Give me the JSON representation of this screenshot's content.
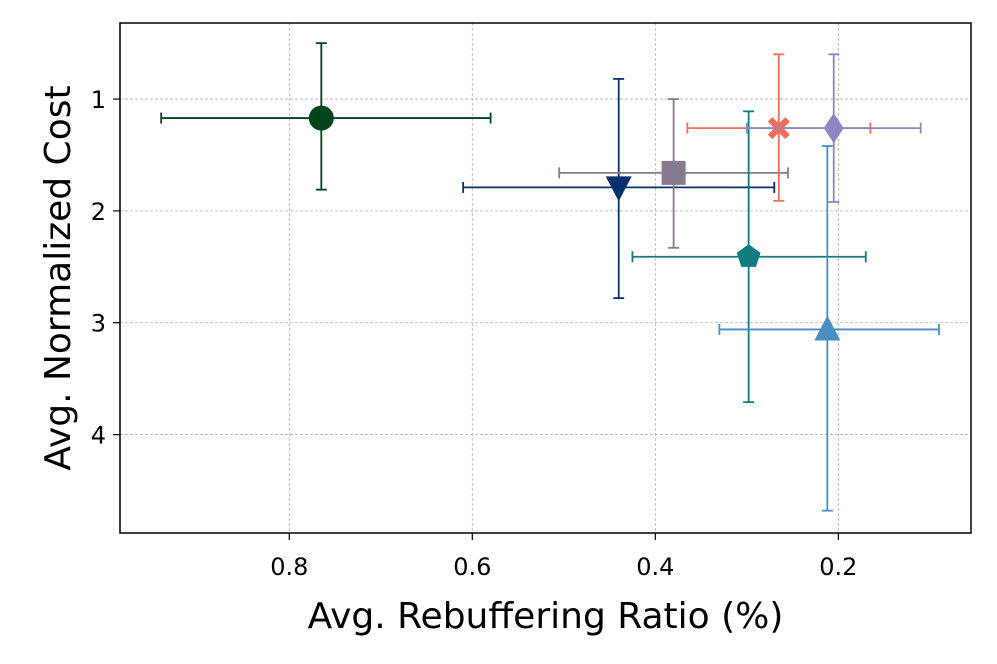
{
  "chart_data": {
    "type": "scatter",
    "title": "",
    "xlabel": "Avg. Rebuffering Ratio (%)",
    "ylabel": "Avg. Normalized Cost",
    "xlim": [
      0.985,
      0.055
    ],
    "ylim": [
      4.88,
      0.32
    ],
    "x_ticks": [
      0.8,
      0.6,
      0.4,
      0.2
    ],
    "x_tick_labels": [
      "0.8",
      "0.6",
      "0.4",
      "0.2"
    ],
    "y_ticks": [
      1,
      2,
      3,
      4
    ],
    "y_tick_labels": [
      "1",
      "2",
      "3",
      "4"
    ],
    "grid": true,
    "series": [
      {
        "name": "dark-green",
        "marker": "circle",
        "color": "#00441b",
        "x": 0.765,
        "y": 1.17,
        "x_err": [
          0.94,
          0.58
        ],
        "y_err": [
          0.5,
          1.81
        ]
      },
      {
        "name": "navy",
        "marker": "triangle-down",
        "color": "#08306b",
        "x": 0.44,
        "y": 1.79,
        "x_err": [
          0.61,
          0.27
        ],
        "y_err": [
          0.82,
          2.78
        ]
      },
      {
        "name": "gray",
        "marker": "square",
        "color": "#857b8c",
        "x": 0.38,
        "y": 1.66,
        "x_err": [
          0.505,
          0.255
        ],
        "y_err": [
          1.0,
          2.33
        ]
      },
      {
        "name": "teal",
        "marker": "pentagon",
        "color": "#0e7c80",
        "x": 0.298,
        "y": 2.41,
        "x_err": [
          0.425,
          0.17
        ],
        "y_err": [
          1.11,
          3.71
        ]
      },
      {
        "name": "salmon",
        "marker": "x-filled",
        "color": "#f26d5b",
        "x": 0.265,
        "y": 1.26,
        "x_err": [
          0.365,
          0.165
        ],
        "y_err": [
          0.6,
          1.91
        ]
      },
      {
        "name": "lavender",
        "marker": "diamond",
        "color": "#8b86c4",
        "x": 0.205,
        "y": 1.26,
        "x_err": [
          0.3,
          0.11
        ],
        "y_err": [
          0.6,
          1.92
        ]
      },
      {
        "name": "sky-blue",
        "marker": "triangle-up",
        "color": "#4a8ec4",
        "x": 0.212,
        "y": 3.06,
        "x_err": [
          0.33,
          0.09
        ],
        "y_err": [
          1.42,
          4.68
        ]
      }
    ]
  }
}
